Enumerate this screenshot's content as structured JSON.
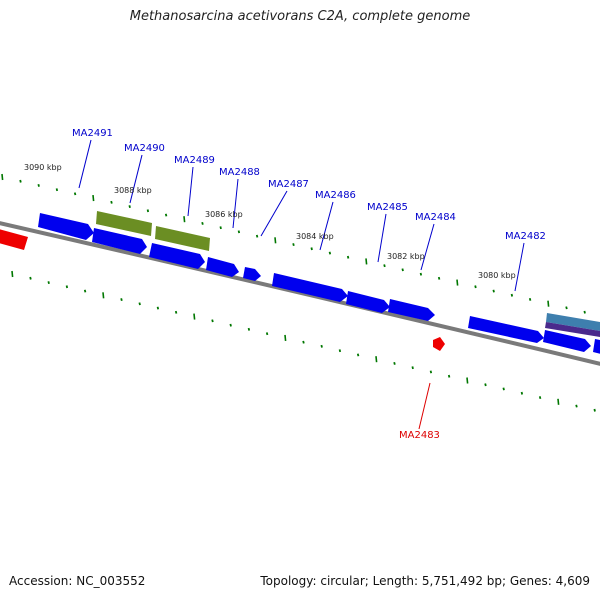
{
  "title": "Methanosarcina acetivorans C2A, complete genome",
  "footer": {
    "accession": "Accession: NC_003552",
    "summary": "Topology: circular; Length: 5,751,492 bp; Genes: 4,609"
  },
  "kbp_labels": [
    "3090 kbp",
    "3088 kbp",
    "3086 kbp",
    "3084 kbp",
    "3082 kbp",
    "3080 kbp"
  ],
  "gene_labels": [
    "MA2491",
    "MA2490",
    "MA2489",
    "MA2488",
    "MA2487",
    "MA2486",
    "MA2485",
    "MA2484",
    "MA2482",
    "MA2483"
  ],
  "colors": {
    "gene_blue": "#0000ee",
    "gene_green": "#6b8e23",
    "gene_red": "#ee0000",
    "label_blue": "#0000cc",
    "label_red": "#dd0000",
    "tick_green": "#007700",
    "backbone": "#7a7a7a"
  }
}
